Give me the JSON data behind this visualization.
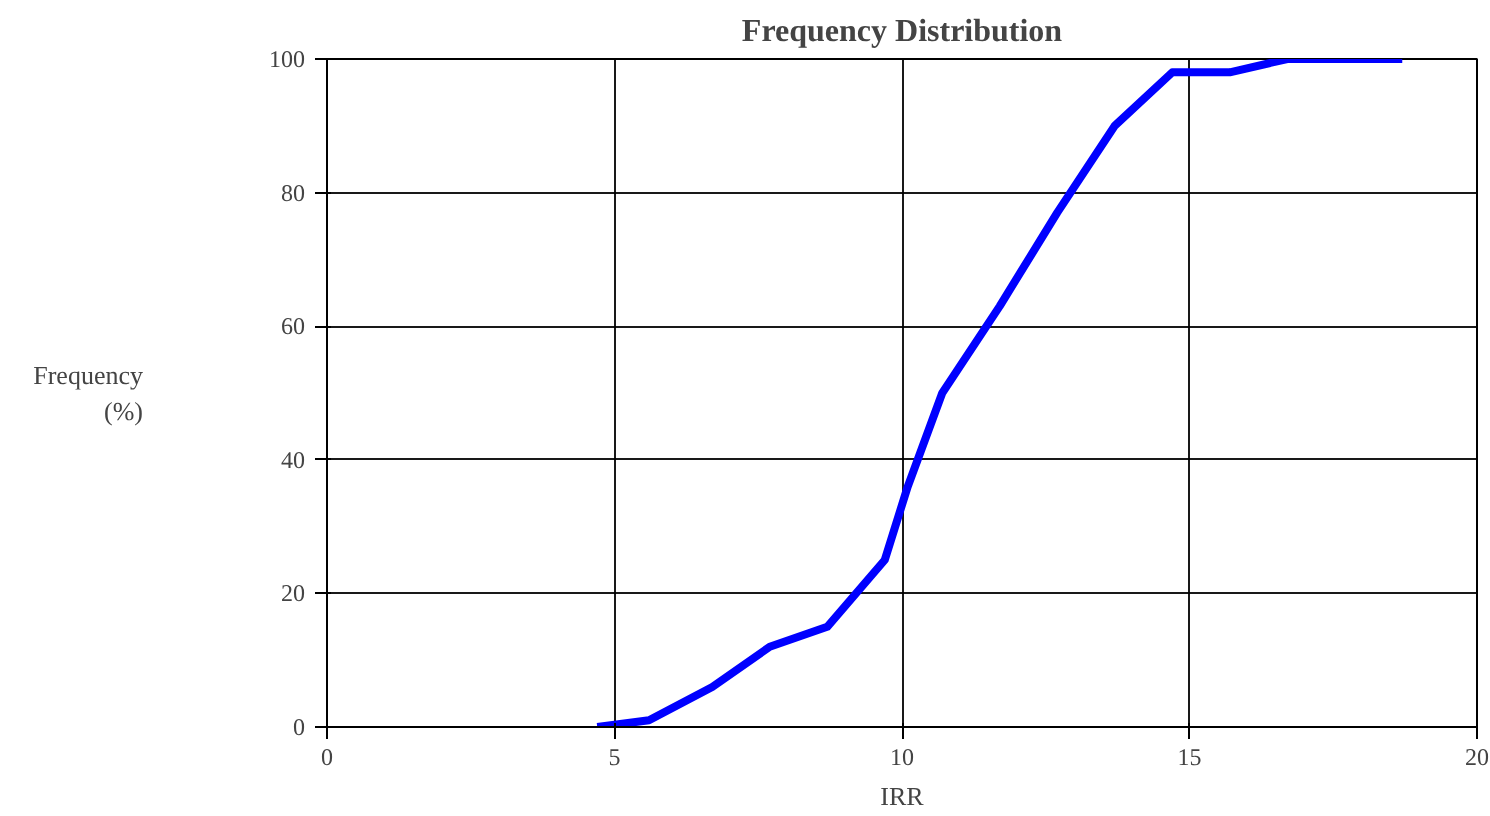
{
  "chart_data": {
    "type": "line",
    "title": "Frequency Distribution",
    "xlabel": "IRR",
    "ylabel": "Frequency\n(%)",
    "series": [
      {
        "color": "#0000ff",
        "x": [
          4.7,
          5.6,
          6.7,
          7.7,
          8.7,
          9.7,
          10.1,
          10.7,
          11.7,
          12.7,
          13.7,
          14.7,
          15.7,
          16.7,
          18.7
        ],
        "values": [
          0,
          1,
          6,
          12,
          15,
          25,
          36,
          50,
          63,
          77,
          90,
          98,
          98,
          100,
          100
        ]
      }
    ],
    "xlim": [
      0,
      20
    ],
    "ylim": [
      0,
      100
    ],
    "xticks": [
      0,
      5,
      10,
      15,
      20
    ],
    "yticks": [
      0,
      20,
      40,
      60,
      80,
      100
    ],
    "grid": true,
    "line_style": "solid"
  }
}
